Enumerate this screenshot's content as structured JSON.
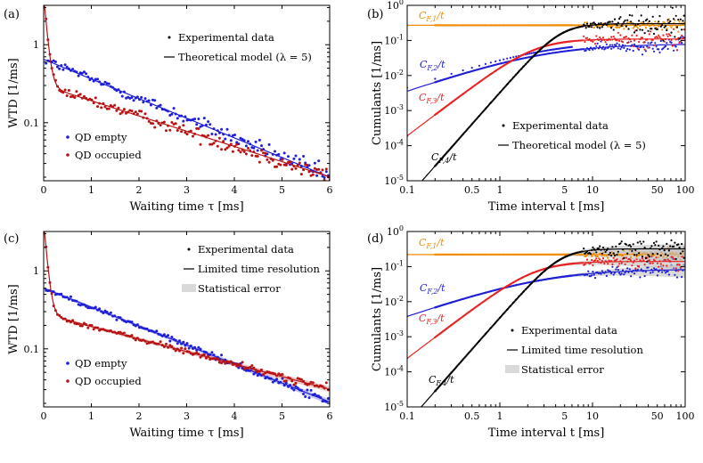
{
  "colors": {
    "blue": "#1f1fd6",
    "red": "#b81414",
    "black": "#000000",
    "orange": "#f08c00",
    "lightred": "#e82323",
    "band": "#bfbfbf"
  },
  "chart_data": [
    {
      "id": "a",
      "panel_label": "(a)",
      "type": "line",
      "scale": "semilog-y",
      "xlabel": "Waiting time τ [ms]",
      "ylabel": "WTD [1/ms]",
      "xlim": [
        0,
        6
      ],
      "ylim": [
        0.018,
        3.2
      ],
      "xticks": [
        "0",
        "1",
        "2",
        "3",
        "4",
        "5",
        "6"
      ],
      "yticks": [
        {
          "value": 1,
          "label": "1"
        },
        {
          "value": 0.1,
          "label": "0.1"
        }
      ],
      "legend": [
        {
          "kind": "dot",
          "label": "Experimental data"
        },
        {
          "kind": "line",
          "label": "Theoretical model (λ = 5)"
        }
      ],
      "series": [
        {
          "name": "QD empty",
          "color": "blue",
          "model": {
            "type": "decay",
            "a": 0.65,
            "b": 0,
            "k": 0.0,
            "r": 0.58
          },
          "noise": 0.13
        },
        {
          "name": "QD occupied",
          "color": "red",
          "model": {
            "type": "decay",
            "a": 0.3,
            "b": 4.0,
            "k": 17,
            "r": 0.45
          },
          "noise": 0.13
        }
      ]
    },
    {
      "id": "b",
      "panel_label": "(b)",
      "type": "line",
      "scale": "log-log",
      "xlabel": "Time interval t [ms]",
      "ylabel": "Cumulants [1/ms]",
      "xlim": [
        0.1,
        100
      ],
      "ylim": [
        1e-05,
        1
      ],
      "xticks": [
        {
          "value": 0.1,
          "label": "0.1"
        },
        {
          "value": 0.5,
          "label": "0.5"
        },
        {
          "value": 1,
          "label": "1"
        },
        {
          "value": 5,
          "label": "5"
        },
        {
          "value": 10,
          "label": "10"
        },
        {
          "value": 50,
          "label": "50"
        },
        {
          "value": 100,
          "label": "100"
        }
      ],
      "yticks": [
        "10^-5",
        "10^-4",
        "10^-3",
        "10^-2",
        "10^-1",
        "10^0"
      ],
      "legend": [
        {
          "kind": "dot",
          "label": "Experimental data"
        },
        {
          "kind": "line",
          "label": "Theoretical model (λ = 5)"
        }
      ],
      "series": [
        {
          "name": "C_F,1/t",
          "color": "orange",
          "model": {
            "type": "cumulant",
            "a": 0.27,
            "p": 0,
            "t0": 1000000000.0
          }
        },
        {
          "name": "C_F,2/t",
          "color": "blue",
          "model": {
            "type": "cumulant",
            "a": 0.08,
            "p": 0.9,
            "t0": 3.0
          }
        },
        {
          "name": "C_F,3/t",
          "color": "lightred",
          "model": {
            "type": "cumulant",
            "a": 0.11,
            "p": 2.0,
            "t0": 2.4
          }
        },
        {
          "name": "C_F,4/t",
          "color": "black",
          "model": {
            "type": "cumulant",
            "a": 0.3,
            "p": 3.0,
            "t0": 4.5
          }
        }
      ],
      "annotations": [
        "C_F,1/t",
        "C_F,2/t",
        "C_F,3/t",
        "C_F,4/t"
      ]
    },
    {
      "id": "c",
      "panel_label": "(c)",
      "type": "line",
      "scale": "semilog-y",
      "xlabel": "Waiting time τ [ms]",
      "ylabel": "WTD [1/ms]",
      "xlim": [
        0,
        6
      ],
      "ylim": [
        0.018,
        3.2
      ],
      "xticks": [
        "0",
        "1",
        "2",
        "3",
        "4",
        "5",
        "6"
      ],
      "yticks": [
        {
          "value": 1,
          "label": "1"
        },
        {
          "value": 0.1,
          "label": "0.1"
        }
      ],
      "legend": [
        {
          "kind": "dot",
          "label": "Experimental data"
        },
        {
          "kind": "line",
          "label": "Limited time resolution"
        },
        {
          "kind": "band",
          "label": "Statistical error"
        }
      ],
      "series": [
        {
          "name": "QD empty",
          "color": "blue",
          "model": {
            "type": "decay",
            "a": 0.6,
            "b": 0,
            "k": 0.0,
            "r": 0.56
          },
          "noise": 0.06
        },
        {
          "name": "QD occupied",
          "color": "red",
          "model": {
            "type": "decay",
            "a": 0.28,
            "b": 4.0,
            "k": 17,
            "r": 0.37
          },
          "noise": 0.06
        }
      ]
    },
    {
      "id": "d",
      "panel_label": "(d)",
      "type": "line",
      "scale": "log-log",
      "xlabel": "Time interval t [ms]",
      "ylabel": "Cumulants [1/ms]",
      "xlim": [
        0.1,
        100
      ],
      "ylim": [
        1e-05,
        1
      ],
      "xticks": [
        {
          "value": 0.1,
          "label": "0.1"
        },
        {
          "value": 0.5,
          "label": "0.5"
        },
        {
          "value": 1,
          "label": "1"
        },
        {
          "value": 5,
          "label": "5"
        },
        {
          "value": 10,
          "label": "10"
        },
        {
          "value": 50,
          "label": "50"
        },
        {
          "value": 100,
          "label": "100"
        }
      ],
      "yticks": [
        "10^-5",
        "10^-4",
        "10^-3",
        "10^-2",
        "10^-1",
        "10^0"
      ],
      "legend": [
        {
          "kind": "dot",
          "label": "Experimental data"
        },
        {
          "kind": "line",
          "label": "Limited time resolution"
        },
        {
          "kind": "band",
          "label": "Statistical error"
        }
      ],
      "series": [
        {
          "name": "C_F,1/t",
          "color": "orange",
          "model": {
            "type": "cumulant",
            "a": 0.22,
            "p": 0,
            "t0": 1000000000.0
          }
        },
        {
          "name": "C_F,2/t",
          "color": "blue",
          "model": {
            "type": "cumulant",
            "a": 0.085,
            "p": 0.9,
            "t0": 3.0
          }
        },
        {
          "name": "C_F,3/t",
          "color": "lightred",
          "model": {
            "type": "cumulant",
            "a": 0.14,
            "p": 2.0,
            "t0": 2.4
          }
        },
        {
          "name": "C_F,4/t",
          "color": "black",
          "model": {
            "type": "cumulant",
            "a": 0.32,
            "p": 3.0,
            "t0": 4.5
          }
        }
      ],
      "annotations": [
        "C_F,1/t",
        "C_F,2/t",
        "C_F,3/t",
        "C_F,4/t"
      ]
    }
  ]
}
